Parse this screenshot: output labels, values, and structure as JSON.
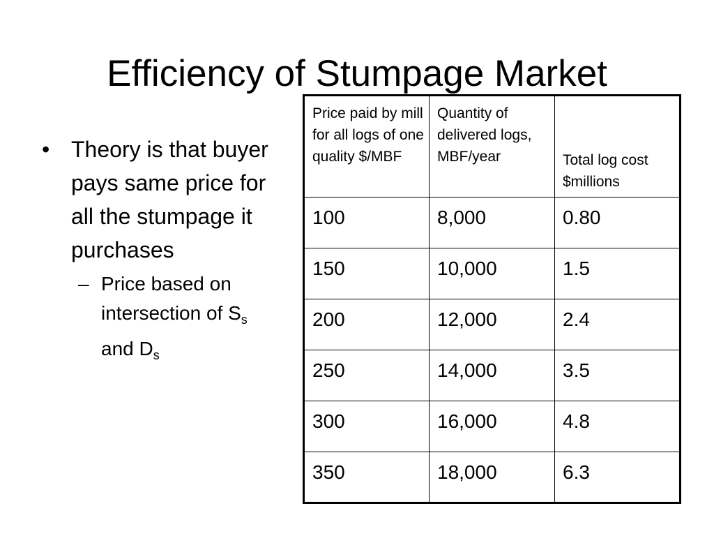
{
  "slide": {
    "title": "Efficiency of Stumpage Market"
  },
  "bullets": {
    "level1": {
      "marker": "•",
      "text": "Theory is that buyer pays same price for all the stumpage it purchases"
    },
    "level2": {
      "marker": "–",
      "text_prefix": "Price based on intersection of S",
      "sub_1": "s",
      "text_middle": " and D",
      "sub_2": "s"
    }
  },
  "table": {
    "headers": [
      "Price paid by mill for all logs of one quality $/MBF",
      "Quantity of delivered logs, MBF/year",
      "Total log cost $millions"
    ],
    "rows": [
      [
        "100",
        "8,000",
        "0.80"
      ],
      [
        "150",
        "10,000",
        "1.5"
      ],
      [
        "200",
        "12,000",
        "2.4"
      ],
      [
        "250",
        "14,000",
        "3.5"
      ],
      [
        "300",
        "16,000",
        "4.8"
      ],
      [
        "350",
        "18,000",
        "6.3"
      ]
    ]
  }
}
